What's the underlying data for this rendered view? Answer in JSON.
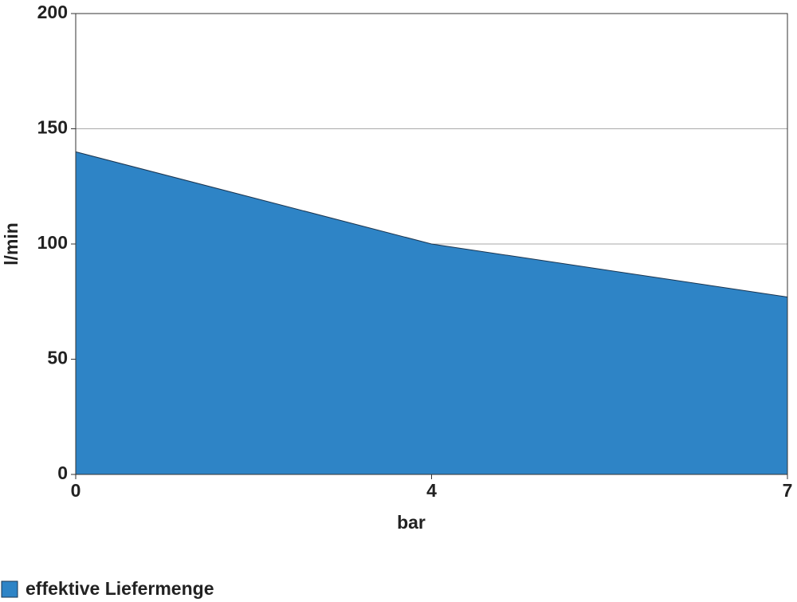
{
  "chart_data": {
    "type": "area",
    "x_label": "bar",
    "y_label": "l/min",
    "categories": [
      "0",
      "4",
      "7"
    ],
    "series": [
      {
        "name": "effektive Liefermenge",
        "color": "#2e84c6",
        "values": [
          140,
          100,
          77
        ]
      }
    ],
    "ylim": [
      0,
      200
    ],
    "yticks": [
      0,
      50,
      100,
      150,
      200
    ],
    "grid": true,
    "legend": "bottom-left"
  }
}
